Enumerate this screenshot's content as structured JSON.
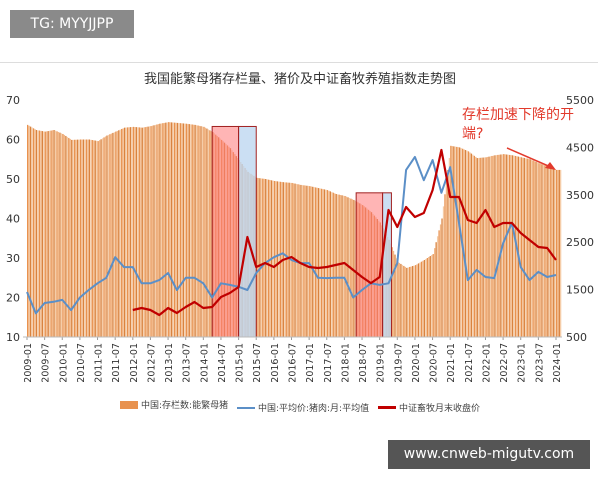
{
  "watermark_top": "TG: MYYJJPP",
  "watermark_bottom": "www.cnweb-migutv.com",
  "chart_data": {
    "type": "bar+line",
    "title": "我国能繁母猪存栏量、猪价及中证畜牧养殖指数走势图",
    "annotation": "存栏加速下降的开端?",
    "left_axis": {
      "range": [
        10,
        70
      ],
      "ticks": [
        10,
        20,
        30,
        40,
        50,
        60,
        70
      ]
    },
    "right_axis": {
      "range": [
        500,
        5500
      ],
      "ticks": [
        500,
        1500,
        2500,
        3500,
        4500,
        5500
      ]
    },
    "tick_labels": [
      "2009-01",
      "2009-07",
      "2010-01",
      "2010-07",
      "2011-01",
      "2011-07",
      "2012-01",
      "2012-07",
      "2013-01",
      "2013-07",
      "2014-01",
      "2014-07",
      "2015-01",
      "2015-07",
      "2016-01",
      "2016-07",
      "2017-01",
      "2017-07",
      "2018-01",
      "2018-07",
      "2019-01",
      "2019-07",
      "2020-01",
      "2020-07",
      "2021-01",
      "2021-07",
      "2022-01",
      "2022-07",
      "2023-01",
      "2023-07",
      "2024-01"
    ],
    "x": [
      "2009-01",
      "2009-04",
      "2009-07",
      "2009-10",
      "2010-01",
      "2010-04",
      "2010-07",
      "2010-10",
      "2011-01",
      "2011-04",
      "2011-07",
      "2011-10",
      "2012-01",
      "2012-04",
      "2012-07",
      "2012-10",
      "2013-01",
      "2013-04",
      "2013-07",
      "2013-10",
      "2014-01",
      "2014-04",
      "2014-07",
      "2014-10",
      "2015-01",
      "2015-04",
      "2015-07",
      "2015-10",
      "2016-01",
      "2016-04",
      "2016-07",
      "2016-10",
      "2017-01",
      "2017-04",
      "2017-07",
      "2017-10",
      "2018-01",
      "2018-04",
      "2018-07",
      "2018-10",
      "2019-01",
      "2019-04",
      "2019-07",
      "2019-10",
      "2020-01",
      "2020-04",
      "2020-07",
      "2020-10",
      "2021-01",
      "2021-04",
      "2021-07",
      "2021-10",
      "2022-01",
      "2022-04",
      "2022-07",
      "2022-10",
      "2023-01",
      "2023-04",
      "2023-07",
      "2023-10",
      "2024-01"
    ],
    "series": [
      {
        "name": "中国:存栏数:能繁母猪",
        "type": "bar",
        "axis": "left",
        "color": "#e8924f",
        "values": [
          63.7,
          62.4,
          62,
          62.4,
          61.4,
          59.9,
          60,
          60,
          59.6,
          61,
          62,
          63,
          63.2,
          63,
          63.4,
          64,
          64.4,
          64.2,
          64,
          63.7,
          63.2,
          61.9,
          59.9,
          57.8,
          54.8,
          51.8,
          50.3,
          50,
          49.5,
          49.2,
          49,
          48.5,
          48.2,
          47.7,
          47.2,
          46.2,
          45.7,
          44.7,
          43.4,
          41.6,
          39,
          34.6,
          29,
          27.5,
          28.2,
          29.5,
          31,
          40,
          58.4,
          58,
          57,
          55.3,
          55.5,
          56,
          56.3,
          56,
          55.5,
          55,
          54,
          53.2,
          52.3
        ]
      },
      {
        "name": "中国:平均价:猪肉:月:平均值",
        "type": "line",
        "axis": "left",
        "color": "#5b8fc7",
        "values": [
          21.4,
          16,
          18.6,
          18.9,
          19.4,
          16.8,
          20,
          21.9,
          23.6,
          25,
          30.2,
          27.7,
          27.7,
          23.6,
          23.6,
          24.4,
          26.2,
          21.9,
          25,
          25,
          23.6,
          20,
          23.6,
          23.2,
          22.7,
          21.9,
          26.2,
          28.7,
          30.2,
          31.2,
          29.5,
          28.7,
          28.7,
          25,
          24.9,
          25,
          25,
          20,
          21.9,
          23.6,
          23.2,
          23.6,
          28.7,
          52.3,
          55.6,
          49.7,
          54.8,
          46.5,
          53,
          38.9,
          24.4,
          27,
          25.2,
          24.9,
          33.7,
          38.9,
          27.7,
          24.4,
          26.5,
          25.2,
          25.7
        ]
      },
      {
        "name": "中证畜牧月末收盘价",
        "type": "line",
        "axis": "right",
        "color": "#c00000",
        "values": [
          null,
          null,
          null,
          null,
          null,
          null,
          null,
          null,
          null,
          null,
          null,
          null,
          1069,
          1111,
          1069,
          964,
          1111,
          1006,
          1132,
          1238,
          1111,
          1132,
          1343,
          1428,
          1554,
          2610,
          1977,
          2061,
          1977,
          2124,
          2187,
          2061,
          1977,
          1955,
          1977,
          2018,
          2061,
          1913,
          1765,
          1638,
          1765,
          3179,
          2820,
          3242,
          3031,
          3116,
          3600,
          4445,
          3453,
          3453,
          2968,
          2905,
          3179,
          2820,
          2905,
          2905,
          2694,
          2546,
          2398,
          2377,
          2124
        ]
      }
    ],
    "highlight_periods": [
      {
        "pink": [
          "2014-04",
          "2015-01"
        ],
        "blue": [
          "2015-01",
          "2015-07"
        ]
      },
      {
        "pink": [
          "2018-05",
          "2019-02"
        ],
        "blue": [
          "2019-02",
          "2019-05"
        ]
      }
    ],
    "legend": "bottom",
    "grid": false
  }
}
